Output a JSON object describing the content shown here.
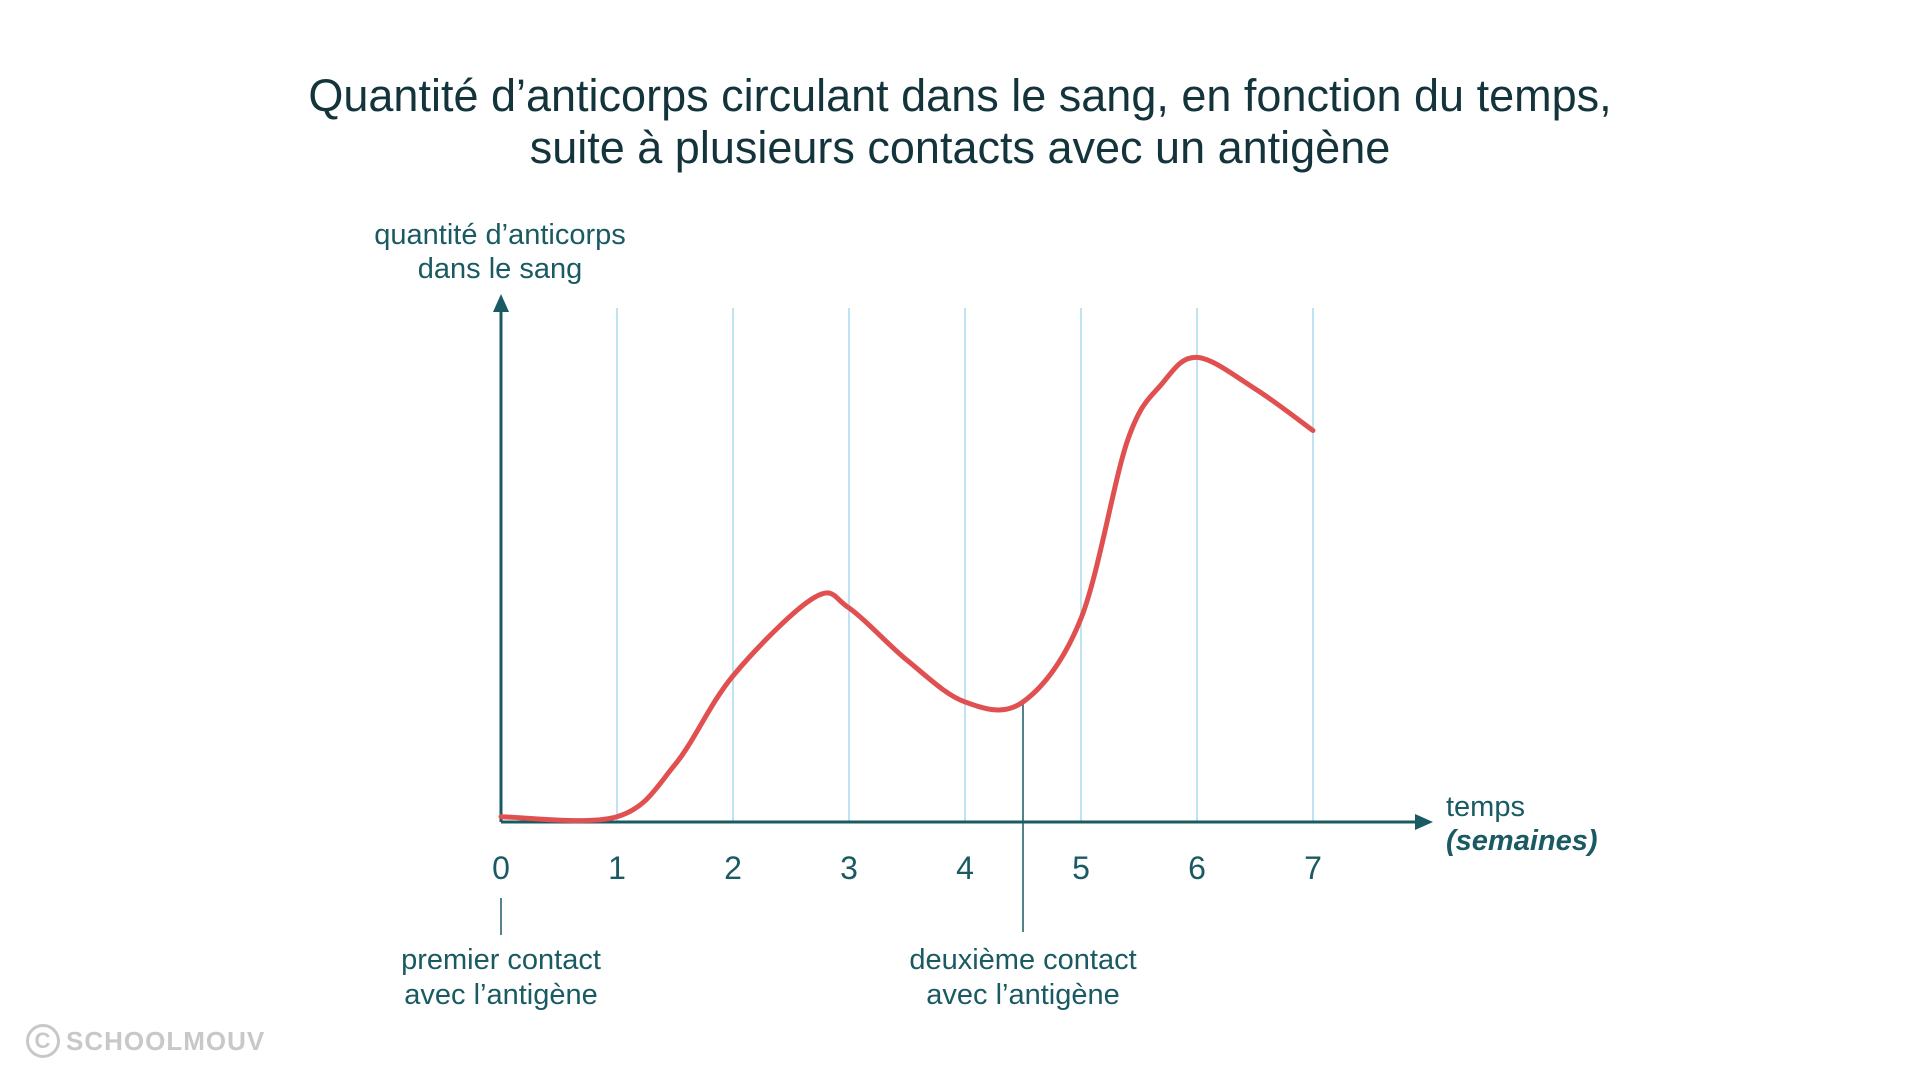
{
  "chart_data": {
    "type": "line",
    "title_lines": [
      "Quantité d’anticorps circulant dans le sang, en fonction du temps,",
      "suite à plusieurs contacts avec un antigène"
    ],
    "ylabel_lines": [
      "quantité d’anticorps",
      "dans le sang"
    ],
    "xlabel": "temps",
    "xunit": "(semaines)",
    "x_ticks": [
      "0",
      "1",
      "2",
      "3",
      "4",
      "5",
      "6",
      "7"
    ],
    "xlim": [
      0,
      8
    ],
    "ylim": [
      0,
      100
    ],
    "grid": "vertical",
    "series": [
      {
        "color": "#e05050",
        "x": [
          0,
          1,
          1.5,
          2,
          2.7,
          3,
          3.5,
          4,
          4.5,
          5,
          5.4,
          5.7,
          6,
          6.5,
          7
        ],
        "y": [
          1,
          1,
          11,
          28,
          43,
          41,
          31,
          23,
          23,
          39,
          73,
          84,
          89,
          83,
          75
        ]
      }
    ],
    "annotations": [
      {
        "x": 0,
        "lines": [
          "premier contact",
          "avec l’antigène"
        ]
      },
      {
        "x": 4.5,
        "lines": [
          "deuxième contact",
          "avec l’antigène"
        ]
      }
    ],
    "colors": {
      "axis": "#1a5a62",
      "grid": "#bfe3f3",
      "curve": "#e05050",
      "title": "#14343c"
    }
  },
  "watermark": {
    "symbol": "C",
    "text": "SCHOOLMOUV"
  }
}
